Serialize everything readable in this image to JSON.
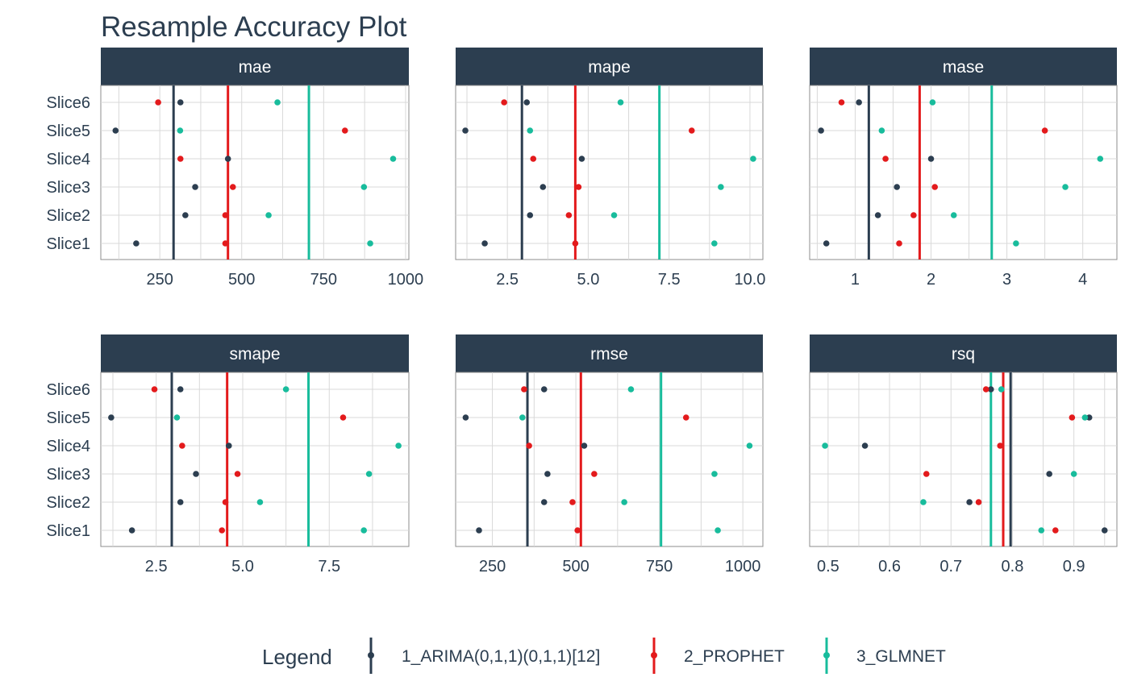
{
  "chart_data": {
    "type": "scatter",
    "title": "Resample Accuracy Plot",
    "categories": [
      "Slice1",
      "Slice2",
      "Slice3",
      "Slice4",
      "Slice5",
      "Slice6"
    ],
    "category_order_top_to_bottom": [
      "Slice6",
      "Slice5",
      "Slice4",
      "Slice3",
      "Slice2",
      "Slice1"
    ],
    "grid": true,
    "legend_placement": "bottom",
    "legend": {
      "title": "Legend",
      "items": [
        "1_ARIMA(0,1,1)(0,1,1)[12]",
        "2_PROPHET",
        "3_GLMNET"
      ]
    },
    "colors": {
      "1_ARIMA(0,1,1)(0,1,1)[12]": "#2c3e50",
      "2_PROPHET": "#e31a1c",
      "3_GLMNET": "#18bc9c",
      "strip_background": "#2c3e50",
      "strip_text": "#ffffff",
      "grid": "#d9d9d9",
      "axis_text": "#2c3e50"
    },
    "facets": [
      {
        "name": "mae",
        "xlim": [
          70,
          1010
        ],
        "xticks": [
          250,
          500,
          750,
          1000
        ],
        "xtick_labels": [
          "250",
          "500",
          "750",
          "1000"
        ],
        "series": [
          {
            "name": "1_ARIMA(0,1,1)(0,1,1)[12]",
            "values": [
              178,
              328,
              358,
              458,
              115,
              313
            ],
            "mean": 292
          },
          {
            "name": "2_PROPHET",
            "values": [
              450,
              450,
              473,
              313,
              815,
              245
            ],
            "mean": 458
          },
          {
            "name": "3_GLMNET",
            "values": [
              892,
              582,
              873,
              962,
              312,
              609
            ],
            "mean": 705
          }
        ]
      },
      {
        "name": "mape",
        "xlim": [
          0.9,
          10.4
        ],
        "xticks": [
          2.5,
          5.0,
          7.5,
          10.0
        ],
        "xtick_labels": [
          "2.5",
          "5.0",
          "7.5",
          "10.0"
        ],
        "series": [
          {
            "name": "1_ARIMA(0,1,1)(0,1,1)[12]",
            "values": [
              1.8,
              3.2,
              3.6,
              4.8,
              1.2,
              3.1
            ],
            "mean": 2.95
          },
          {
            "name": "2_PROPHET",
            "values": [
              4.6,
              4.4,
              4.7,
              3.3,
              8.2,
              2.4
            ],
            "mean": 4.6
          },
          {
            "name": "3_GLMNET",
            "values": [
              8.9,
              5.8,
              9.1,
              10.1,
              3.2,
              6.0
            ],
            "mean": 7.2
          }
        ]
      },
      {
        "name": "mase",
        "xlim": [
          0.4,
          4.45
        ],
        "xticks": [
          1,
          2,
          3,
          4
        ],
        "xtick_labels": [
          "1",
          "2",
          "3",
          "4"
        ],
        "series": [
          {
            "name": "1_ARIMA(0,1,1)(0,1,1)[12]",
            "values": [
              0.62,
              1.3,
              1.55,
              2.0,
              0.55,
              1.05
            ],
            "mean": 1.18
          },
          {
            "name": "2_PROPHET",
            "values": [
              1.58,
              1.77,
              2.05,
              1.4,
              3.5,
              0.82
            ],
            "mean": 1.85
          },
          {
            "name": "3_GLMNET",
            "values": [
              3.12,
              2.3,
              3.77,
              4.23,
              1.35,
              2.02
            ],
            "mean": 2.8
          }
        ]
      },
      {
        "name": "smape",
        "xlim": [
          0.9,
          9.8
        ],
        "xticks": [
          2.5,
          5.0,
          7.5
        ],
        "xtick_labels": [
          "2.5",
          "5.0",
          "7.5"
        ],
        "series": [
          {
            "name": "1_ARIMA(0,1,1)(0,1,1)[12]",
            "values": [
              1.8,
              3.2,
              3.65,
              4.6,
              1.2,
              3.2
            ],
            "mean": 2.95
          },
          {
            "name": "2_PROPHET",
            "values": [
              4.4,
              4.5,
              4.85,
              3.25,
              7.9,
              2.45
            ],
            "mean": 4.55
          },
          {
            "name": "3_GLMNET",
            "values": [
              8.5,
              5.5,
              8.65,
              9.5,
              3.1,
              6.25
            ],
            "mean": 6.9
          }
        ]
      },
      {
        "name": "rmse",
        "xlim": [
          140,
          1060
        ],
        "xticks": [
          250,
          500,
          750,
          1000
        ],
        "xtick_labels": [
          "250",
          "500",
          "750",
          "1000"
        ],
        "series": [
          {
            "name": "1_ARIMA(0,1,1)(0,1,1)[12]",
            "values": [
              210,
              405,
              415,
              525,
              170,
              405
            ],
            "mean": 355
          },
          {
            "name": "2_PROPHET",
            "values": [
              505,
              490,
              555,
              360,
              830,
              345
            ],
            "mean": 515
          },
          {
            "name": "3_GLMNET",
            "values": [
              925,
              645,
              915,
              1020,
              340,
              665
            ],
            "mean": 755
          }
        ]
      },
      {
        "name": "rsq",
        "xlim": [
          0.47,
          0.97
        ],
        "xticks": [
          0.5,
          0.6,
          0.7,
          0.8,
          0.9
        ],
        "xtick_labels": [
          "0.5",
          "0.6",
          "0.7",
          "0.8",
          "0.9"
        ],
        "series": [
          {
            "name": "1_ARIMA(0,1,1)(0,1,1)[12]",
            "values": [
              0.95,
              0.73,
              0.86,
              0.56,
              0.925,
              0.765
            ],
            "mean": 0.797
          },
          {
            "name": "2_PROPHET",
            "values": [
              0.87,
              0.745,
              0.66,
              0.78,
              0.897,
              0.757
            ],
            "mean": 0.785
          },
          {
            "name": "3_GLMNET",
            "values": [
              0.847,
              0.655,
              0.9,
              0.495,
              0.918,
              0.782
            ],
            "mean": 0.765
          }
        ]
      }
    ]
  }
}
